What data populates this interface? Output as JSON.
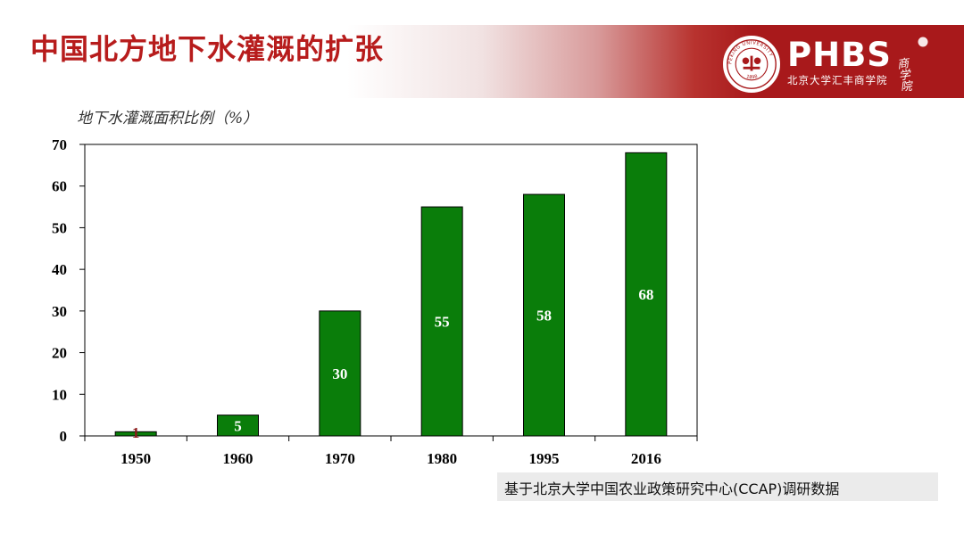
{
  "slide": {
    "title": "中国北方地下水灌溉的扩张",
    "source_note": "基于北京大学中国农业政策研究中心(CCAP)调研数据"
  },
  "logo": {
    "brand": "PHBS",
    "subtitle": "北京大学汇丰商学院",
    "seal_text": "PEKING UNIVERSITY",
    "seal_year": "1898",
    "calligraphy": "商学院"
  },
  "colors": {
    "accent_red": "#b71c1c",
    "header_red": "#a8191b",
    "bar_green": "#0a7d0a",
    "label_white": "#ffffff",
    "label_dark_red": "#8b1a1a"
  },
  "chart_data": {
    "type": "bar",
    "title": "",
    "ylabel": "地下水灌溉面积比例（%）",
    "xlabel": "",
    "categories": [
      "1950",
      "1960",
      "1970",
      "1980",
      "1995",
      "2016"
    ],
    "values": [
      1,
      5,
      30,
      55,
      58,
      68
    ],
    "data_labels": [
      "1",
      "5",
      "30",
      "55",
      "58",
      "68"
    ],
    "ylim": [
      0,
      70
    ],
    "yticks": [
      "0",
      "10",
      "20",
      "30",
      "40",
      "50",
      "60",
      "70"
    ],
    "grid": false,
    "legend": "none"
  }
}
